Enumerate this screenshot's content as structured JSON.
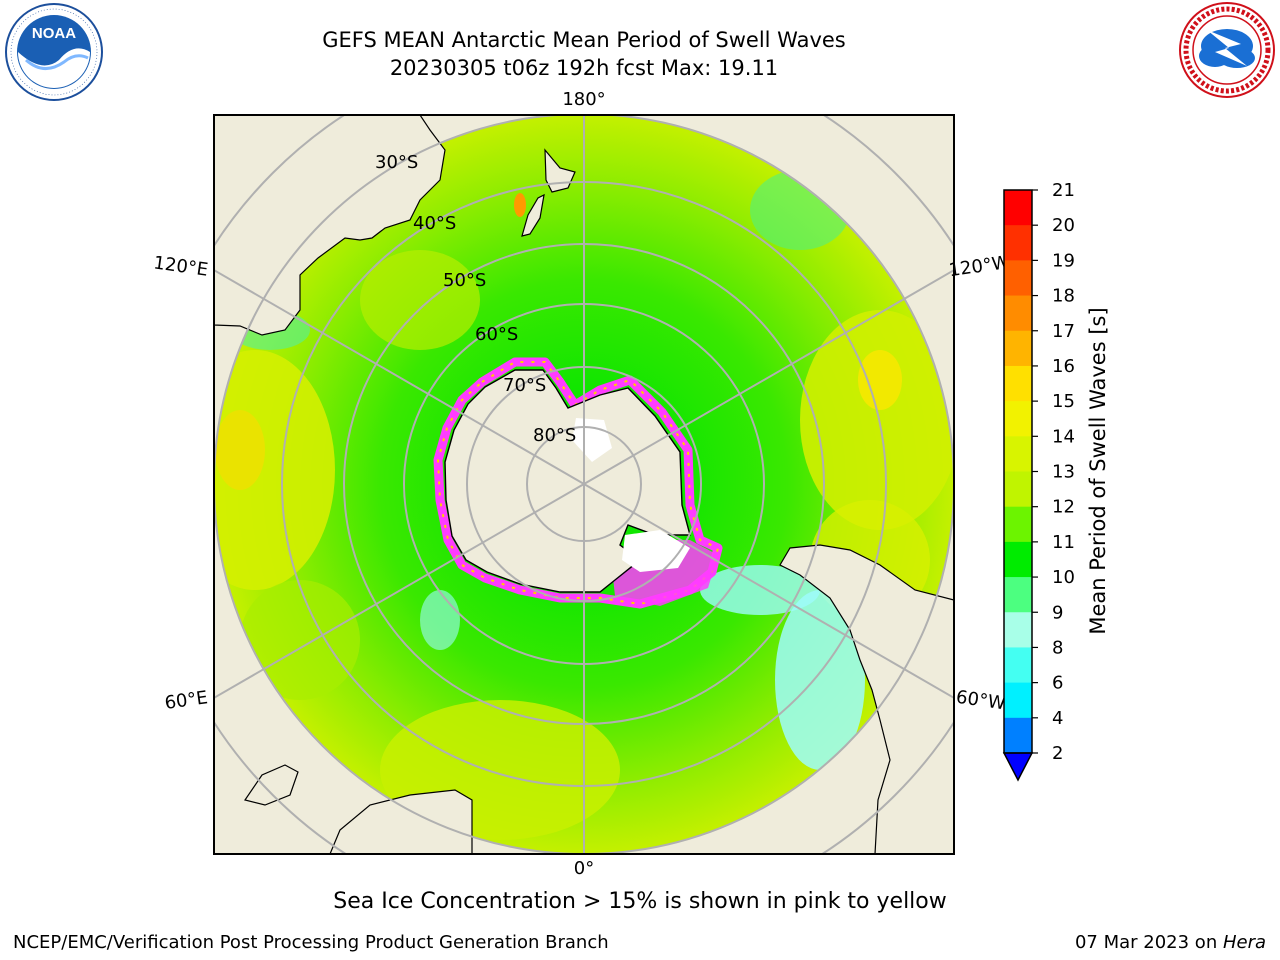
{
  "title": {
    "line1": "GEFS MEAN Antarctic Mean Period of Swell Waves",
    "line2": "20230305 t06z 192h fcst   Max: 19.11"
  },
  "logos": {
    "left": {
      "icon": "noaa-logo",
      "text": "NOAA",
      "ring_text": "NATIONAL OCEANIC AND ATMOSPHERIC ADMINISTRATION · U.S. DEPARTMENT OF COMMERCE"
    },
    "right": {
      "icon": "nws-logo",
      "ring_text": "NATIONAL WEATHER SERVICE"
    }
  },
  "map": {
    "projection": "south-polar-stereographic",
    "lon_labels": {
      "top": "180°",
      "bottom": "0°",
      "left_upper": "120°E",
      "left_lower": "60°E",
      "right_upper": "120°W",
      "right_lower": "60°W"
    },
    "lat_labels": [
      "30°S",
      "40°S",
      "50°S",
      "60°S",
      "70°S",
      "80°S"
    ],
    "colors": {
      "land": "#efecdb",
      "ocean_main": "#2ee800",
      "ocean_light": "#8ee800",
      "ocean_yellow": "#d9f000",
      "ice_pink": "#ff3cff",
      "ice_yellow": "#ffd000",
      "graticule": "#b0b0b0",
      "swell_cyan": "#9dfbfb"
    }
  },
  "colorbar": {
    "label": "Mean Period of Swell Waves [s]",
    "ticks": [
      "21",
      "20",
      "19",
      "18",
      "17",
      "16",
      "15",
      "14",
      "13",
      "12",
      "11",
      "10",
      "9",
      "8",
      "6",
      "4",
      "2"
    ],
    "colors": [
      "#ff0000",
      "#ff3000",
      "#ff6000",
      "#ff8c00",
      "#ffb400",
      "#ffe000",
      "#f2f200",
      "#d8f400",
      "#c0f400",
      "#6cf400",
      "#00ec00",
      "#4cff80",
      "#a8ffe8",
      "#44fff2",
      "#00f0ff",
      "#0080ff"
    ],
    "extend_color": "#0000ff"
  },
  "caption": "Sea Ice Concentration > 15% is shown in pink to yellow",
  "footer": {
    "left": "NCEP/EMC/Verification Post Processing Product Generation Branch",
    "right_date": "07 Mar 2023 on ",
    "right_host": "Hera"
  }
}
